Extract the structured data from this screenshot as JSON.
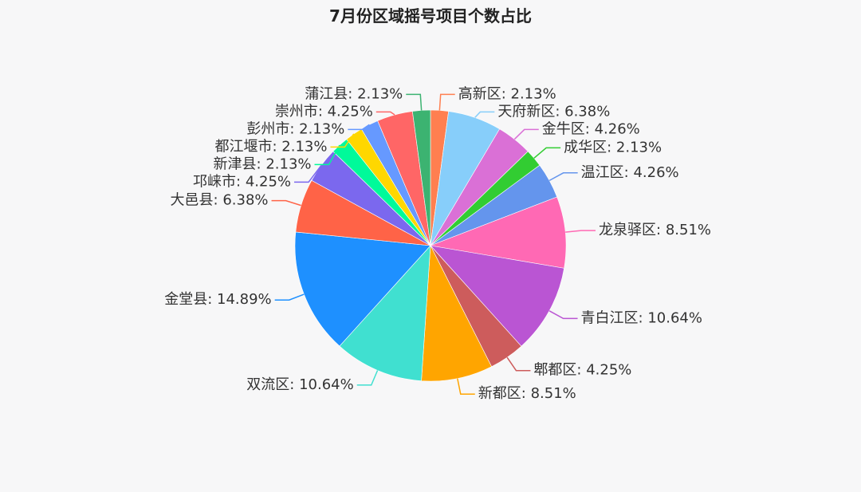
{
  "chart_data": {
    "type": "pie",
    "title": "7月份区域摇号项目个数占比",
    "slices": [
      {
        "name": "高新区",
        "value": 2.13,
        "label": "2.13%",
        "color": "#ff7f50"
      },
      {
        "name": "天府新区",
        "value": 6.38,
        "label": "6.38%",
        "color": "#87cefa"
      },
      {
        "name": "金牛区",
        "value": 4.26,
        "label": "4.26%",
        "color": "#da70d6"
      },
      {
        "name": "成华区",
        "value": 2.13,
        "label": "2.13%",
        "color": "#32cd32"
      },
      {
        "name": "温江区",
        "value": 4.26,
        "label": "4.26%",
        "color": "#6495ed"
      },
      {
        "name": "龙泉驿区",
        "value": 8.51,
        "label": "8.51%",
        "color": "#ff69b4"
      },
      {
        "name": "青白江区",
        "value": 10.64,
        "label": "10.64%",
        "color": "#ba55d3"
      },
      {
        "name": "郫都区",
        "value": 4.25,
        "label": "4.25%",
        "color": "#cd5c5c"
      },
      {
        "name": "新都区",
        "value": 8.51,
        "label": "8.51%",
        "color": "#ffa500"
      },
      {
        "name": "双流区",
        "value": 10.64,
        "label": "10.64%",
        "color": "#40e0d0"
      },
      {
        "name": "金堂县",
        "value": 14.89,
        "label": "14.89%",
        "color": "#1e90ff"
      },
      {
        "name": "大邑县",
        "value": 6.38,
        "label": "6.38%",
        "color": "#ff6347"
      },
      {
        "name": "邛崃市",
        "value": 4.25,
        "label": "4.25%",
        "color": "#7b68ee"
      },
      {
        "name": "新津县",
        "value": 2.13,
        "label": "2.13%",
        "color": "#00fa9a"
      },
      {
        "name": "都江堰市",
        "value": 2.13,
        "label": "2.13%",
        "color": "#ffd700"
      },
      {
        "name": "彭州市",
        "value": 2.13,
        "label": "2.13%",
        "color": "#6699ff"
      },
      {
        "name": "崇州市",
        "value": 4.25,
        "label": "4.25%",
        "color": "#ff6666"
      },
      {
        "name": "蒲江县",
        "value": 2.13,
        "label": "2.13%",
        "color": "#3cb371"
      }
    ]
  }
}
